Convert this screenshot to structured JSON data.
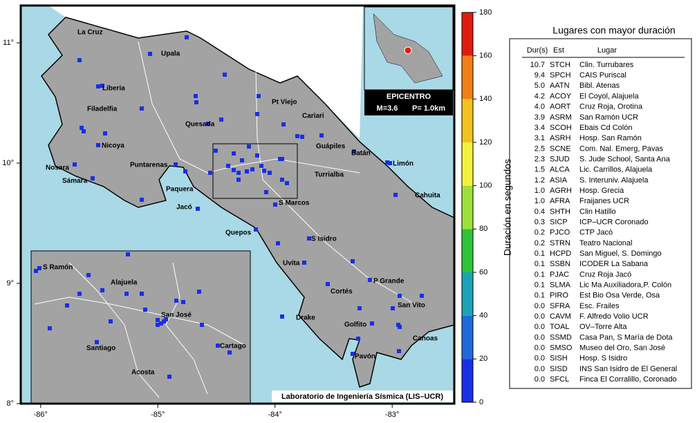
{
  "map": {
    "lonticks": [
      {
        "value": -86,
        "label": "-86°"
      },
      {
        "value": -85,
        "label": "-85°"
      },
      {
        "value": -84,
        "label": "-84°"
      },
      {
        "value": -83,
        "label": "-83°"
      }
    ],
    "latticks": [
      {
        "value": 11,
        "label": "11°"
      },
      {
        "value": 10,
        "label": "10°"
      },
      {
        "value": 9,
        "label": "9°"
      },
      {
        "value": 8,
        "label": "8°"
      }
    ],
    "xlim": [
      -86.17,
      -82.47
    ],
    "ylim": [
      8,
      11.31
    ],
    "places": [
      "La Cruz",
      "Upala",
      "Liberia",
      "Filadelfia",
      "Quesada",
      "Pt Viejo",
      "Cariari",
      "Nicoya",
      "Guápiles",
      "Batán",
      "Limón",
      "Nosara",
      "Puntarenas",
      "Turrialba",
      "Sámara",
      "Paquera",
      "Cahuita",
      "Jacó",
      "S Marcos",
      "Quepos",
      "S Isidro",
      "Uvita",
      "P Grande",
      "Cortés",
      "San Vito",
      "Drake",
      "Golfito",
      "Canoas",
      "Pavón"
    ],
    "inset_places": [
      "S Ramón",
      "Alajuela",
      "San José",
      "Santiago",
      "Cartago",
      "Acosta"
    ],
    "epicenter_title": "EPICENTRO",
    "magnitude": "M=3.6",
    "depth": "P= 1.0km",
    "credit": "Laboratorio de Ingeniería Sísmica (LIS–UCR)"
  },
  "colorbar": {
    "label": "Duración en segundos",
    "lim": [
      0,
      180
    ],
    "ticks": [
      0,
      20,
      40,
      60,
      80,
      100,
      120,
      140,
      160,
      180
    ],
    "colors": [
      "#1a2ee6",
      "#1f6ad8",
      "#1ea2b8",
      "#2ec43a",
      "#9ee03a",
      "#f2f23a",
      "#f2c21e",
      "#f27e1a",
      "#e01c10"
    ]
  },
  "table": {
    "title": "Lugares con mayor duración",
    "headers": [
      "Dur(s)",
      "Est",
      "Lugar"
    ],
    "rows": [
      [
        "10.7",
        "STCH",
        "Clin. Turrubares"
      ],
      [
        "9.4",
        "SPCH",
        "CAIS Puriscal"
      ],
      [
        "5.0",
        "AATN",
        "Bibl. Atenas"
      ],
      [
        "4.2",
        "ACOY",
        "El Coyol, Alajuela"
      ],
      [
        "4.0",
        "AORT",
        "Cruz Roja, Orotina"
      ],
      [
        "3.9",
        "ASRM",
        "San Ramón UCR"
      ],
      [
        "3.4",
        "SCOH",
        "Ebais Cd Colón"
      ],
      [
        "3.1",
        "ASRH",
        "Hosp. San Ramón"
      ],
      [
        "2.5",
        "SCNE",
        "Com. Nal. Emerg, Pavas"
      ],
      [
        "2.3",
        "SJUD",
        "S. Jude School, Santa Ana"
      ],
      [
        "1.5",
        "ALCA",
        "Lic. Carrillos, Alajuela"
      ],
      [
        "1.2",
        "ASIA",
        "S. Interuniv. Alajuela"
      ],
      [
        "1.0",
        "AGRH",
        "Hosp. Grecia"
      ],
      [
        "1.0",
        "AFRA",
        "Fraijanes UCR"
      ],
      [
        "0.4",
        "SHTH",
        "Clin Hatillo"
      ],
      [
        "0.3",
        "SICP",
        "ICP–UCR Coronado"
      ],
      [
        "0.2",
        "PJCO",
        "CTP Jacó"
      ],
      [
        "0.2",
        "STRN",
        "Teatro Nacional"
      ],
      [
        "0.1",
        "HCPD",
        "San Miguel, S. Domingo"
      ],
      [
        "0.1",
        "SSBN",
        "ICODER La Sabana"
      ],
      [
        "0.1",
        "PJAC",
        "Cruz Roja Jacó"
      ],
      [
        "0.1",
        "SLMA",
        "Lic Ma Auxiliadora,P. Colón"
      ],
      [
        "0.1",
        "PIRO",
        "Est Bio Osa Verde, Osa"
      ],
      [
        "0.0",
        "SFRA",
        "Esc. Frailes"
      ],
      [
        "0.0",
        "CAVM",
        "F. Alfredo Volio UCR"
      ],
      [
        "0.0",
        "TOAL",
        "OV–Torre Alta"
      ],
      [
        "0.0",
        "SSMD",
        "Casa Pan, S María de Dota"
      ],
      [
        "0.0",
        "SMSO",
        "Museo del Oro, San José"
      ],
      [
        "0.0",
        "SISH",
        "Hosp. S Isidro"
      ],
      [
        "0.0",
        "SISD",
        "INS San Isidro de El General"
      ],
      [
        "0.0",
        "SFCL",
        "Finca El Corralillo, Coronado"
      ]
    ]
  }
}
